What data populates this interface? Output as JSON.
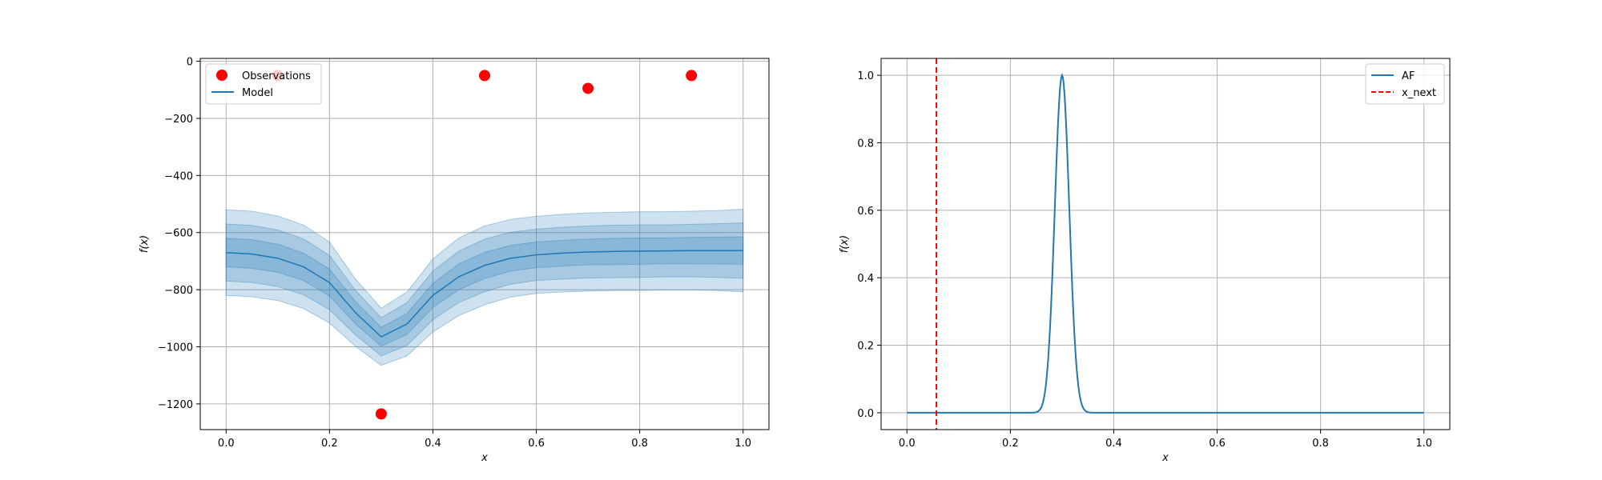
{
  "chart_data": [
    {
      "type": "line",
      "title": "",
      "xlabel": "x",
      "ylabel": "f(x)",
      "xlim": [
        -0.05,
        1.05
      ],
      "ylim": [
        -1290,
        10
      ],
      "xticks": [
        0.0,
        0.2,
        0.4,
        0.6,
        0.8,
        1.0
      ],
      "xtick_labels": [
        "0.0",
        "0.2",
        "0.4",
        "0.6",
        "0.8",
        "1.0"
      ],
      "yticks": [
        0,
        -200,
        -400,
        -600,
        -800,
        -1000,
        -1200
      ],
      "ytick_labels": [
        "0",
        "−200",
        "−400",
        "−600",
        "−800",
        "−1000",
        "−1200"
      ],
      "grid": true,
      "legend_position": "top-left",
      "legend": [
        {
          "label": "Observations",
          "kind": "marker",
          "color": "#ff0000"
        },
        {
          "label": "Model",
          "kind": "line",
          "color": "#1f77b4"
        }
      ],
      "series": [
        {
          "name": "Observations",
          "kind": "scatter",
          "color": "#ff0000",
          "x": [
            0.1,
            0.3,
            0.5,
            0.7,
            0.9
          ],
          "y": [
            -50,
            -1235,
            -50,
            -95,
            -50
          ]
        },
        {
          "name": "Model",
          "kind": "line",
          "color": "#1f77b4",
          "x": [
            0.0,
            0.05,
            0.1,
            0.15,
            0.2,
            0.25,
            0.3,
            0.35,
            0.4,
            0.45,
            0.5,
            0.55,
            0.6,
            0.65,
            0.7,
            0.75,
            0.8,
            0.85,
            0.9,
            0.95,
            1.0
          ],
          "y": [
            -670,
            -675,
            -690,
            -720,
            -775,
            -880,
            -965,
            -920,
            -820,
            -755,
            -715,
            -690,
            -678,
            -672,
            -668,
            -666,
            -665,
            -664,
            -663,
            -663,
            -663
          ],
          "bands": [
            {
              "halfwidth": [
                150,
                150,
                148,
                146,
                142,
                118,
                100,
                112,
                128,
                136,
                138,
                136,
                135,
                136,
                137,
                137,
                138,
                137,
                138,
                140,
                145
              ],
              "alpha": 0.25
            },
            {
              "halfwidth": [
                100,
                100,
                99,
                98,
                95,
                78,
                67,
                75,
                85,
                90,
                92,
                91,
                90,
                91,
                91,
                92,
                92,
                91,
                92,
                94,
                97
              ],
              "alpha": 0.45
            },
            {
              "halfwidth": [
                50,
                50,
                49,
                48,
                47,
                39,
                33,
                37,
                42,
                45,
                46,
                45,
                45,
                45,
                45,
                46,
                46,
                45,
                46,
                47,
                48
              ],
              "alpha": 0.65
            }
          ]
        }
      ]
    },
    {
      "type": "line",
      "title": "",
      "xlabel": "x",
      "ylabel": "f(x)",
      "xlim": [
        -0.05,
        1.05
      ],
      "ylim": [
        -0.05,
        1.05
      ],
      "xticks": [
        0.0,
        0.2,
        0.4,
        0.6,
        0.8,
        1.0
      ],
      "xtick_labels": [
        "0.0",
        "0.2",
        "0.4",
        "0.6",
        "0.8",
        "1.0"
      ],
      "yticks": [
        0.0,
        0.2,
        0.4,
        0.6,
        0.8,
        1.0
      ],
      "ytick_labels": [
        "0.0",
        "0.2",
        "0.4",
        "0.6",
        "0.8",
        "1.0"
      ],
      "grid": true,
      "legend_position": "top-right",
      "legend": [
        {
          "label": "AF",
          "kind": "line",
          "color": "#1f77b4"
        },
        {
          "label": "x_next",
          "kind": "dashed",
          "color": "#ff0000"
        }
      ],
      "series": [
        {
          "name": "AF",
          "kind": "line",
          "color": "#1f77b4",
          "peak": {
            "center": 0.3,
            "width": 0.014,
            "height": 1.0
          },
          "x_range": [
            0.0,
            1.0
          ]
        },
        {
          "name": "x_next",
          "kind": "vline",
          "color": "#ff0000",
          "x": 0.057
        }
      ]
    }
  ]
}
